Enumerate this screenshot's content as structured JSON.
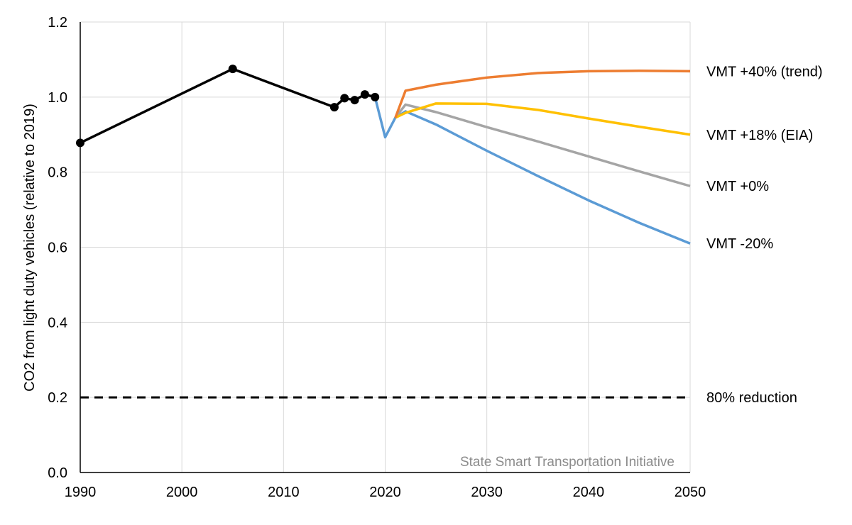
{
  "chart_data": {
    "type": "line",
    "title": "",
    "xlabel": "",
    "ylabel": "CO2 from light duty vehicles (relative to 2019)",
    "xlim": [
      1990,
      2050
    ],
    "ylim": [
      0,
      1.2
    ],
    "x_ticks": [
      "1990",
      "2000",
      "2010",
      "2020",
      "2030",
      "2040",
      "2050"
    ],
    "y_ticks": [
      "0.0",
      "0.2",
      "0.4",
      "0.6",
      "0.8",
      "1.0",
      "1.2"
    ],
    "grid": true,
    "watermark": "State Smart Transportation Initiative",
    "series": [
      {
        "key": "historical",
        "color": "#000000",
        "markers": true,
        "points": [
          [
            1990,
            0.878
          ],
          [
            2005,
            1.075
          ],
          [
            2015,
            0.973
          ],
          [
            2016,
            0.997
          ],
          [
            2017,
            0.992
          ],
          [
            2018,
            1.007
          ],
          [
            2019,
            1.0
          ]
        ]
      },
      {
        "key": "vmt_minus20",
        "name": "VMT -20%",
        "color": "#5b9bd5",
        "points": [
          [
            2019,
            1.0
          ],
          [
            2020,
            0.893
          ],
          [
            2021,
            0.945
          ],
          [
            2022,
            0.962
          ],
          [
            2025,
            0.927
          ],
          [
            2030,
            0.857
          ],
          [
            2035,
            0.79
          ],
          [
            2040,
            0.725
          ],
          [
            2045,
            0.665
          ],
          [
            2050,
            0.61
          ]
        ]
      },
      {
        "key": "vmt_0",
        "name": "VMT +0%",
        "color": "#a5a5a5",
        "points": [
          [
            2021,
            0.945
          ],
          [
            2022,
            0.98
          ],
          [
            2025,
            0.96
          ],
          [
            2030,
            0.92
          ],
          [
            2035,
            0.882
          ],
          [
            2040,
            0.842
          ],
          [
            2045,
            0.802
          ],
          [
            2050,
            0.763
          ]
        ]
      },
      {
        "key": "vmt_plus18",
        "name": "VMT +18% (EIA)",
        "color": "#ffc000",
        "points": [
          [
            2021,
            0.945
          ],
          [
            2022,
            0.958
          ],
          [
            2025,
            0.983
          ],
          [
            2030,
            0.982
          ],
          [
            2035,
            0.966
          ],
          [
            2040,
            0.943
          ],
          [
            2045,
            0.921
          ],
          [
            2050,
            0.9
          ]
        ]
      },
      {
        "key": "vmt_plus40",
        "name": "VMT +40% (trend)",
        "color": "#ed7d31",
        "points": [
          [
            2021,
            0.945
          ],
          [
            2022,
            1.017
          ],
          [
            2025,
            1.033
          ],
          [
            2030,
            1.052
          ],
          [
            2035,
            1.064
          ],
          [
            2040,
            1.069
          ],
          [
            2045,
            1.07
          ],
          [
            2050,
            1.069
          ]
        ]
      }
    ],
    "reference_line": {
      "y": 0.2,
      "label": "80% reduction",
      "color": "#000000",
      "style": "dashed"
    }
  }
}
